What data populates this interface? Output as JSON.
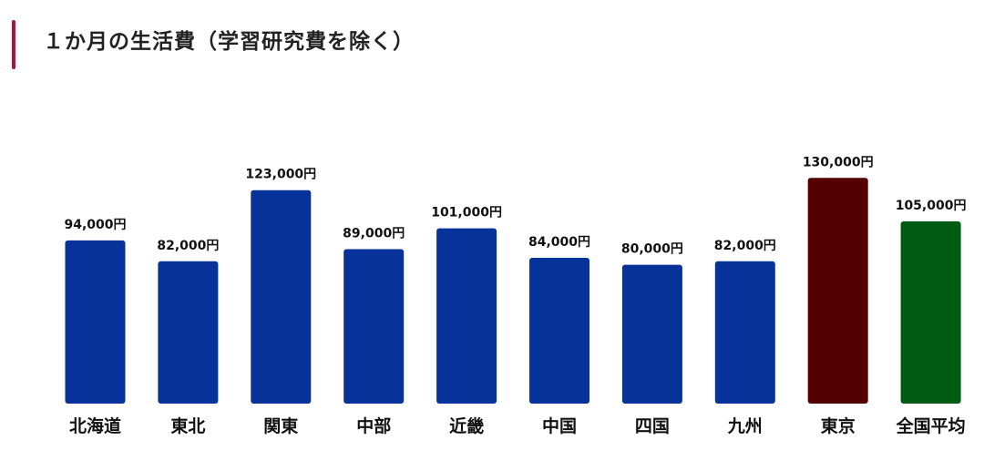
{
  "chart_data": {
    "type": "bar",
    "title": "１か月の生活費（学習研究費を除く）",
    "xlabel": "",
    "ylabel": "",
    "ylim": [
      0,
      150000
    ],
    "categories": [
      "北海道",
      "東北",
      "関東",
      "中部",
      "近畿",
      "中国",
      "四国",
      "九州",
      "東京",
      "全国平均"
    ],
    "values": [
      94000,
      82000,
      123000,
      89000,
      101000,
      84000,
      80000,
      82000,
      130000,
      105000
    ],
    "value_labels": [
      "94,000円",
      "82,000円",
      "123,000円",
      "89,000円",
      "101,000円",
      "84,000円",
      "80,000円",
      "82,000円",
      "130,000円",
      "105,000円"
    ],
    "colors": [
      "#06329a",
      "#06329a",
      "#06329a",
      "#06329a",
      "#06329a",
      "#06329a",
      "#06329a",
      "#06329a",
      "#540000",
      "#005c12"
    ],
    "grid": false,
    "legend": "none"
  },
  "colors": {
    "accent": "#b0103a",
    "region_bar": "#06329a",
    "tokyo_bar": "#540000",
    "national_average_bar": "#005c12"
  }
}
